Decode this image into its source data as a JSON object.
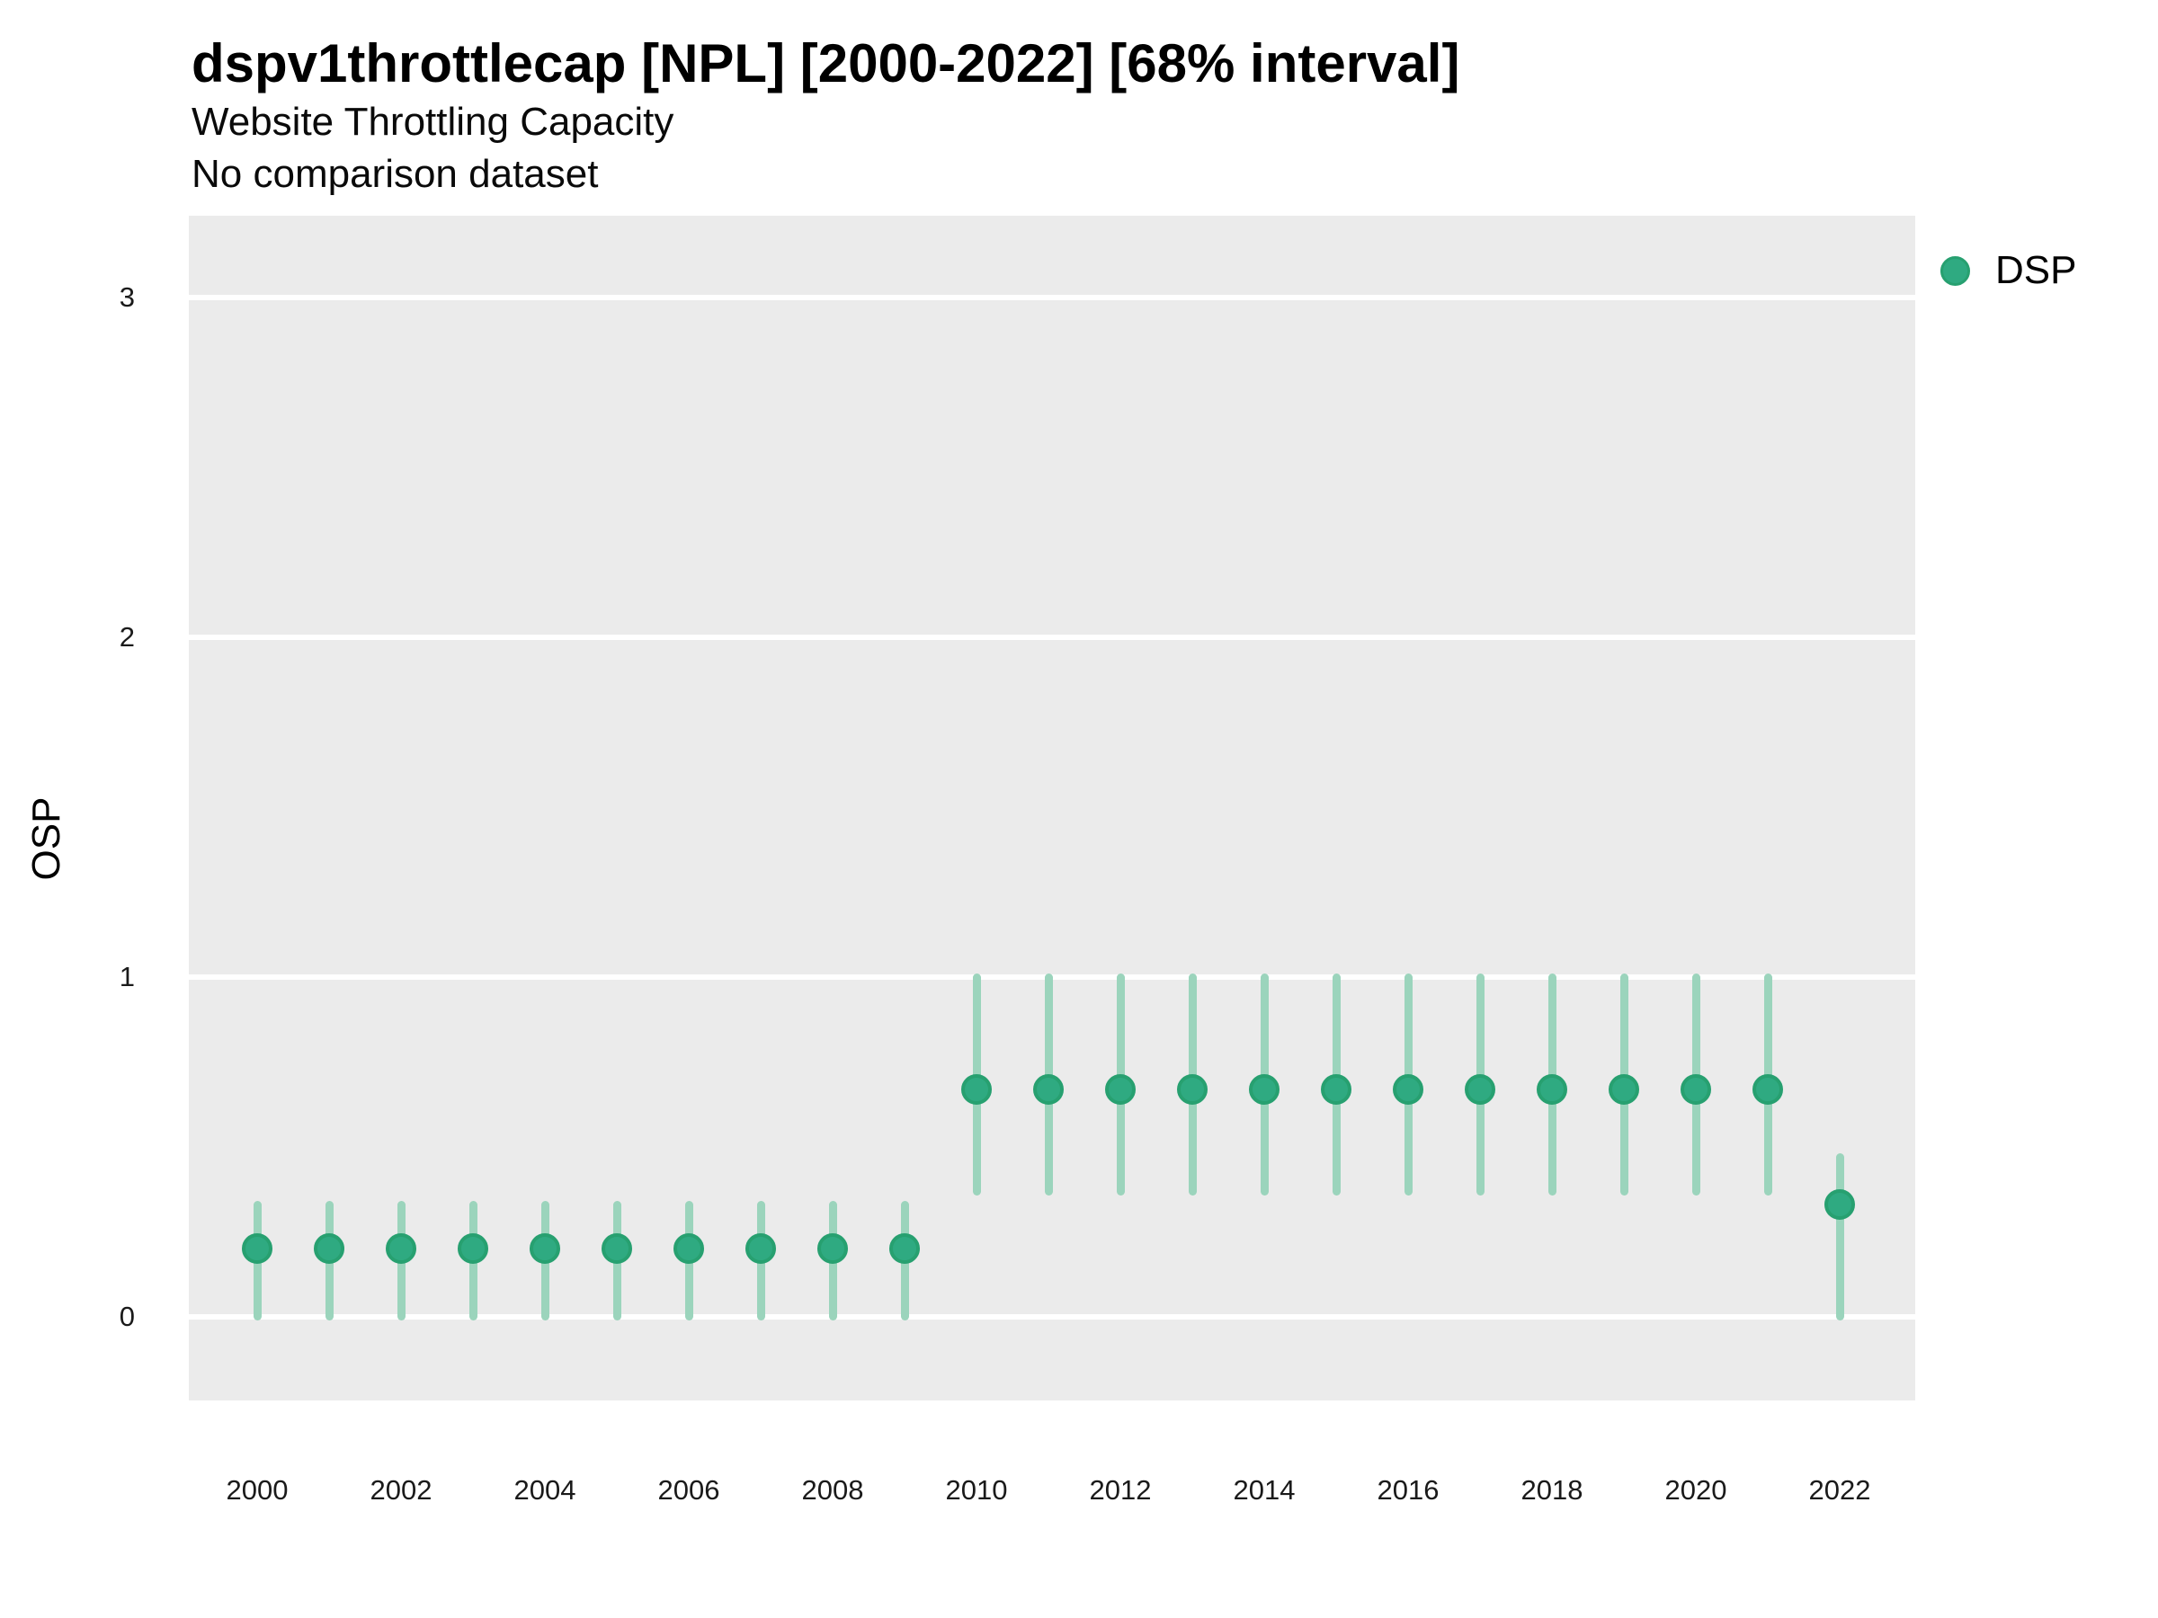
{
  "header": {
    "title": "dspv1throttlecap [NPL] [2000-2022] [68% interval]",
    "subtitle": "Website Throttling Capacity",
    "subtitle2": "No comparison dataset"
  },
  "axes": {
    "y_label": "OSP",
    "y_ticks": [
      0,
      1,
      2,
      3
    ],
    "x_ticks": [
      "2000",
      "2002",
      "2004",
      "2006",
      "2008",
      "2010",
      "2012",
      "2014",
      "2016",
      "2018",
      "2020",
      "2022"
    ]
  },
  "legend": {
    "entries": [
      {
        "label": "DSP",
        "marker": "circle-icon"
      }
    ]
  },
  "colors": {
    "point_fill": "#2FAA81",
    "point_edge": "#27A070",
    "interval": "#9BD4BC",
    "panel_bg": "#EBEBEB",
    "gridline": "#FFFFFF",
    "text": "#000000"
  },
  "chart_data": {
    "type": "scatter",
    "subtype": "pointrange",
    "title": "dspv1throttlecap [NPL] [2000-2022] [68% interval]",
    "subtitle": "Website Throttling Capacity",
    "comparison_note": "No comparison dataset",
    "xlabel": "",
    "ylabel": "OSP",
    "xlim": [
      1999.05,
      2023.05
    ],
    "ylim": [
      -0.25,
      3.24
    ],
    "grid": "major-y-only",
    "legend_position": "right",
    "interval_level": "68%",
    "series": [
      {
        "name": "DSP",
        "points": [
          {
            "year": 2000,
            "value": 0.2,
            "lo": 0.0,
            "hi": 0.33
          },
          {
            "year": 2001,
            "value": 0.2,
            "lo": 0.0,
            "hi": 0.33
          },
          {
            "year": 2002,
            "value": 0.2,
            "lo": 0.0,
            "hi": 0.33
          },
          {
            "year": 2003,
            "value": 0.2,
            "lo": 0.0,
            "hi": 0.33
          },
          {
            "year": 2004,
            "value": 0.2,
            "lo": 0.0,
            "hi": 0.33
          },
          {
            "year": 2005,
            "value": 0.2,
            "lo": 0.0,
            "hi": 0.33
          },
          {
            "year": 2006,
            "value": 0.2,
            "lo": 0.0,
            "hi": 0.33
          },
          {
            "year": 2007,
            "value": 0.2,
            "lo": 0.0,
            "hi": 0.33
          },
          {
            "year": 2008,
            "value": 0.2,
            "lo": 0.0,
            "hi": 0.33
          },
          {
            "year": 2009,
            "value": 0.2,
            "lo": 0.0,
            "hi": 0.33
          },
          {
            "year": 2010,
            "value": 0.67,
            "lo": 0.37,
            "hi": 1.0
          },
          {
            "year": 2011,
            "value": 0.67,
            "lo": 0.37,
            "hi": 1.0
          },
          {
            "year": 2012,
            "value": 0.67,
            "lo": 0.37,
            "hi": 1.0
          },
          {
            "year": 2013,
            "value": 0.67,
            "lo": 0.37,
            "hi": 1.0
          },
          {
            "year": 2014,
            "value": 0.67,
            "lo": 0.37,
            "hi": 1.0
          },
          {
            "year": 2015,
            "value": 0.67,
            "lo": 0.37,
            "hi": 1.0
          },
          {
            "year": 2016,
            "value": 0.67,
            "lo": 0.37,
            "hi": 1.0
          },
          {
            "year": 2017,
            "value": 0.67,
            "lo": 0.37,
            "hi": 1.0
          },
          {
            "year": 2018,
            "value": 0.67,
            "lo": 0.37,
            "hi": 1.0
          },
          {
            "year": 2019,
            "value": 0.67,
            "lo": 0.37,
            "hi": 1.0
          },
          {
            "year": 2020,
            "value": 0.67,
            "lo": 0.37,
            "hi": 1.0
          },
          {
            "year": 2021,
            "value": 0.67,
            "lo": 0.37,
            "hi": 1.0
          },
          {
            "year": 2022,
            "value": 0.33,
            "lo": 0.0,
            "hi": 0.47
          }
        ]
      }
    ]
  }
}
